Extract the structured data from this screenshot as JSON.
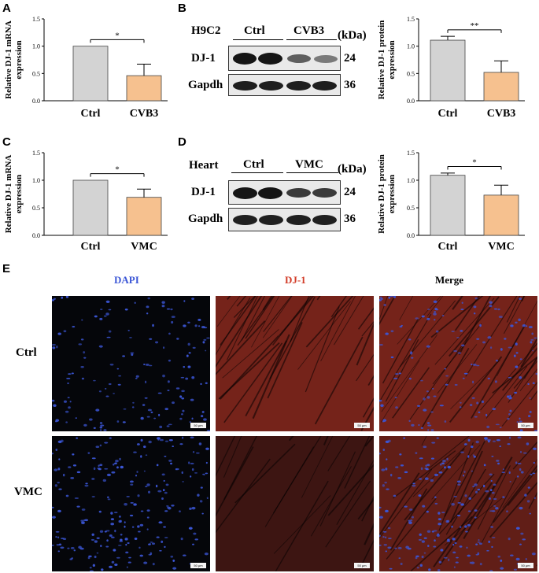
{
  "panels": {
    "A": {
      "letter": "A"
    },
    "B": {
      "letter": "B",
      "cell_label": "H9C2",
      "group_labels": [
        "Ctrl",
        "CVB3"
      ],
      "unit": "(kDa)",
      "proteins": [
        {
          "name": "DJ-1",
          "kda": "24"
        },
        {
          "name": "Gapdh",
          "kda": "36"
        }
      ]
    },
    "C": {
      "letter": "C"
    },
    "D": {
      "letter": "D",
      "cell_label": "Heart",
      "group_labels": [
        "Ctrl",
        "VMC"
      ],
      "unit": "(kDa)",
      "proteins": [
        {
          "name": "DJ-1",
          "kda": "24"
        },
        {
          "name": "Gapdh",
          "kda": "36"
        }
      ]
    },
    "E": {
      "letter": "E",
      "columns": [
        "DAPI",
        "DJ-1",
        "Merge"
      ],
      "rows": [
        "Ctrl",
        "VMC"
      ],
      "scale_bar": "50 μm",
      "colors": {
        "dapi": "#3b56d6",
        "dj1": "#d23c28"
      }
    }
  },
  "chart_data": [
    {
      "id": "A",
      "type": "bar",
      "categories": [
        "Ctrl",
        "CVB3"
      ],
      "values": [
        1.0,
        0.46
      ],
      "errors": [
        0,
        0.21
      ],
      "ylabel": "Relative DJ-1 mRNA expression",
      "ylim": [
        0,
        1.5
      ],
      "yticks": [
        "0.0",
        "0.5",
        "1.0",
        "1.5"
      ],
      "significance": "*",
      "colors": [
        "#d3d3d3",
        "#f6c18f"
      ]
    },
    {
      "id": "B",
      "type": "bar",
      "categories": [
        "Ctrl",
        "CVB3"
      ],
      "values": [
        1.11,
        0.52
      ],
      "errors": [
        0.07,
        0.21
      ],
      "ylabel": "Relative DJ-1 protein expression",
      "ylim": [
        0,
        1.5
      ],
      "yticks": [
        "0.0",
        "0.5",
        "1.0",
        "1.5"
      ],
      "significance": "**",
      "colors": [
        "#d3d3d3",
        "#f6c18f"
      ]
    },
    {
      "id": "C",
      "type": "bar",
      "categories": [
        "Ctrl",
        "VMC"
      ],
      "values": [
        1.0,
        0.69
      ],
      "errors": [
        0,
        0.15
      ],
      "ylabel": "Relative DJ-1 mRNA expression",
      "ylim": [
        0,
        1.5
      ],
      "yticks": [
        "0.0",
        "0.5",
        "1.0",
        "1.5"
      ],
      "significance": "*",
      "colors": [
        "#d3d3d3",
        "#f6c18f"
      ]
    },
    {
      "id": "D",
      "type": "bar",
      "categories": [
        "Ctrl",
        "VMC"
      ],
      "values": [
        1.09,
        0.73
      ],
      "errors": [
        0.04,
        0.18
      ],
      "ylabel": "Relative DJ-1 protein expression",
      "ylim": [
        0,
        1.5
      ],
      "yticks": [
        "0.0",
        "0.5",
        "1.0",
        "1.5"
      ],
      "significance": "*",
      "colors": [
        "#d3d3d3",
        "#f6c18f"
      ]
    }
  ]
}
